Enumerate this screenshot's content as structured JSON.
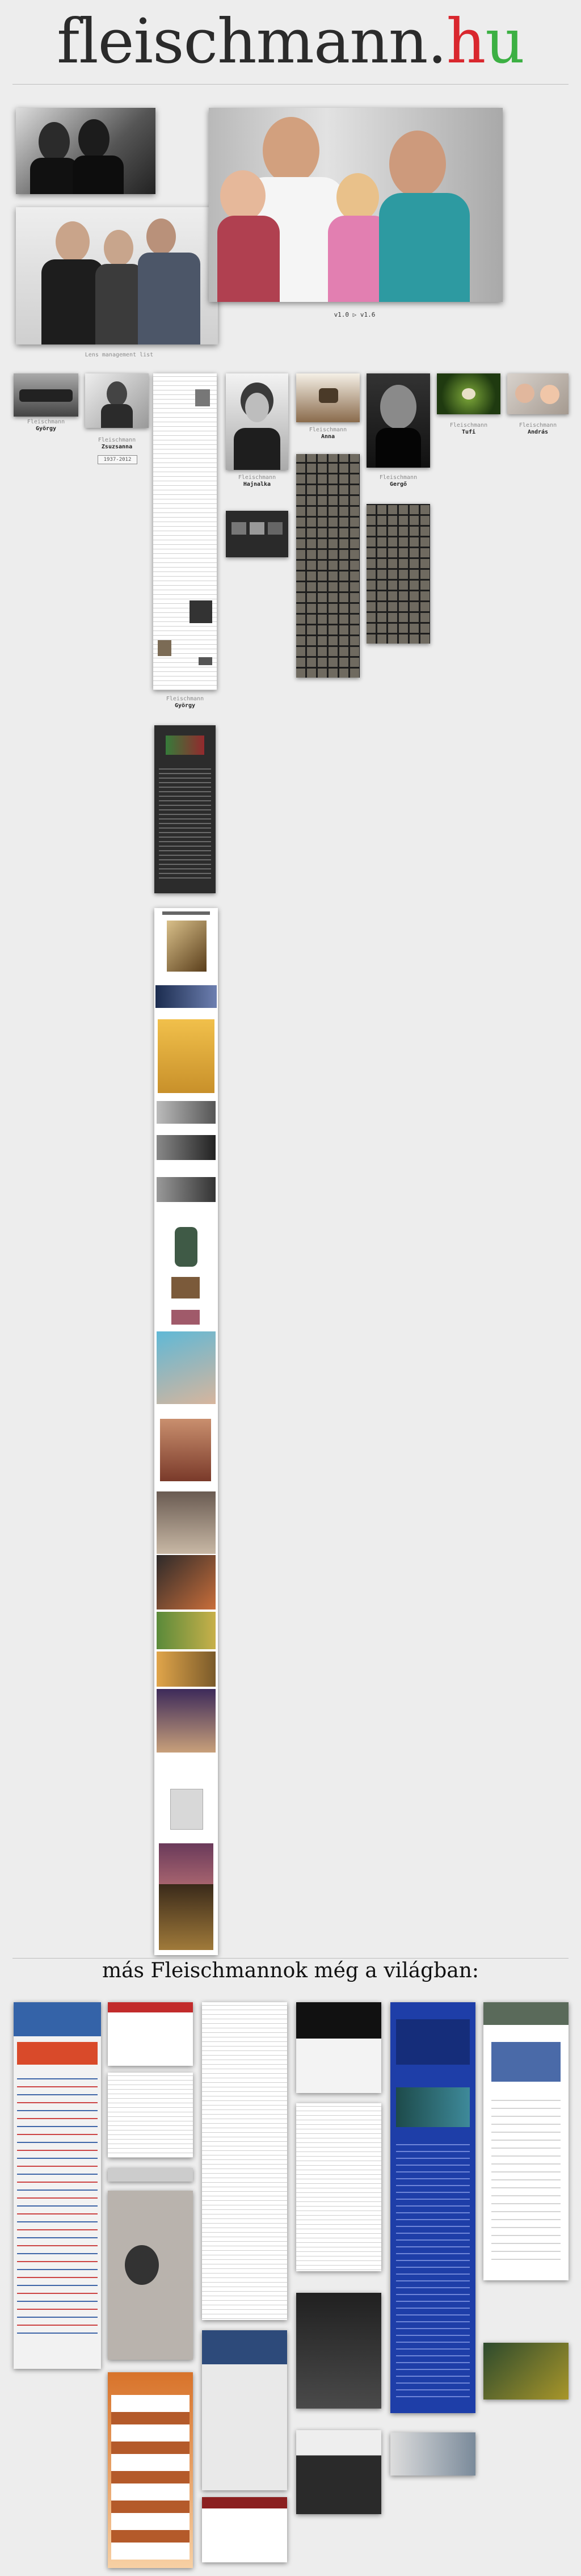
{
  "site": {
    "logo_main": "fleischmann.",
    "logo_h": "h",
    "logo_u": "u"
  },
  "hero": {
    "version_label": "v1.0 ▷ v1.6"
  },
  "family": [
    {
      "role": "Fleischmann",
      "name": "György"
    },
    {
      "role": "Fleischmann ",
      "name": "Zsuzsanna"
    },
    {
      "role": "Fleischmann",
      "name": "Hajnalka"
    },
    {
      "role": "Fleischmann",
      "name": "Anna"
    },
    {
      "role": "Fleischmann",
      "name": "Gergő"
    },
    {
      "role": "Fleischmann",
      "name": "Tufi"
    },
    {
      "role": "Fleischmann",
      "name": "András"
    },
    {
      "role": "Fleischmann",
      "name": "György"
    }
  ],
  "zsuzsanna_box": "1937-2012",
  "small_label": "Lens management list",
  "others": {
    "title": "más Fleischmannok még a világban:"
  }
}
